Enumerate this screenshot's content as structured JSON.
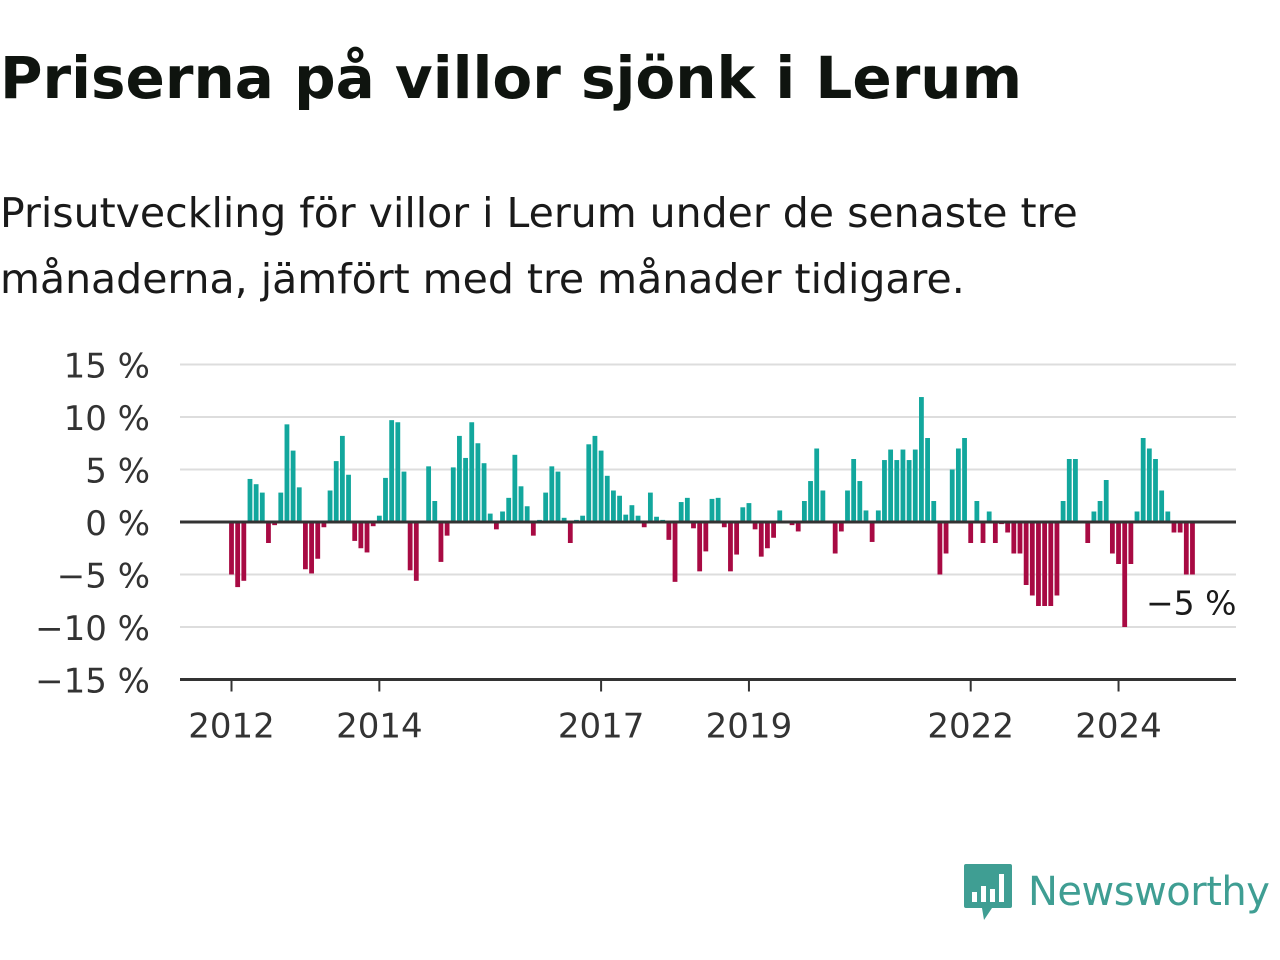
{
  "title": "Priserna på villor sjönk i Lerum",
  "subtitle": "Prisutveckling för villor i Lerum under de senaste tre månaderna, jämfört med tre månader tidigare.",
  "brand": {
    "name": "Newsworthy",
    "color": "#3f9e93",
    "icon": "bar-chart-speech-bubble-icon"
  },
  "colors": {
    "positive": "#12a79d",
    "negative": "#a80a43",
    "grid": "#dddddd",
    "axis": "#333333"
  },
  "chart_data": {
    "type": "bar",
    "ylim": [
      -15,
      15
    ],
    "yticks": [
      15,
      10,
      5,
      0,
      -5,
      -10,
      -15
    ],
    "ytick_labels": [
      "15 %",
      "10 %",
      "5 %",
      "0 %",
      "−5 %",
      "−10 %",
      "−15 %"
    ],
    "xticks": [
      2012,
      2014,
      2017,
      2019,
      2022,
      2024
    ],
    "xtick_labels": [
      "2012",
      "2014",
      "2017",
      "2019",
      "2022",
      "2024"
    ],
    "start": "2012-01",
    "frequency": "monthly",
    "values": [
      -5,
      -6.2,
      -5.6,
      4.1,
      3.6,
      2.8,
      -2,
      -0.3,
      2.8,
      9.3,
      6.8,
      3.3,
      -4.5,
      -4.9,
      -3.5,
      -0.5,
      3,
      5.8,
      8.2,
      4.5,
      -1.8,
      -2.5,
      -2.9,
      -0.4,
      0.6,
      4.2,
      9.7,
      9.5,
      4.8,
      -4.6,
      -5.6,
      0,
      5.3,
      2,
      -3.8,
      -1.3,
      5.2,
      8.2,
      6.1,
      9.5,
      7.5,
      5.6,
      0.8,
      -0.7,
      1,
      2.3,
      6.4,
      3.4,
      1.5,
      -1.3,
      0.2,
      2.8,
      5.3,
      4.8,
      0.4,
      -2,
      0.2,
      0.6,
      7.4,
      8.2,
      6.8,
      4.4,
      3,
      2.5,
      0.7,
      1.6,
      0.6,
      -0.5,
      2.8,
      0.5,
      0.2,
      -1.7,
      -5.7,
      1.9,
      2.3,
      -0.6,
      -4.7,
      -2.8,
      2.2,
      2.3,
      -0.5,
      -4.7,
      -3.1,
      1.4,
      1.8,
      -0.7,
      -3.3,
      -2.5,
      -1.5,
      1.1,
      0.1,
      -0.3,
      -0.9,
      2,
      3.9,
      7,
      3,
      0.1,
      -3,
      -0.9,
      3,
      6,
      3.9,
      1.1,
      -1.9,
      1.1,
      5.9,
      6.9,
      5.9,
      6.9,
      5.9,
      6.9,
      11.9,
      8,
      2,
      -5,
      -3,
      5,
      7,
      8,
      -2,
      2,
      -2,
      1,
      -2,
      -0.2,
      -1,
      -3,
      -3,
      -6,
      -7,
      -8,
      -8,
      -8,
      -7,
      2,
      6,
      6,
      0,
      -2,
      1,
      2,
      4,
      -3,
      -4,
      -10,
      -4,
      1,
      8,
      7,
      6,
      3,
      1,
      -1,
      -1,
      -5,
      -5
    ],
    "annotation": {
      "text": "−5 %",
      "value": -5
    }
  }
}
